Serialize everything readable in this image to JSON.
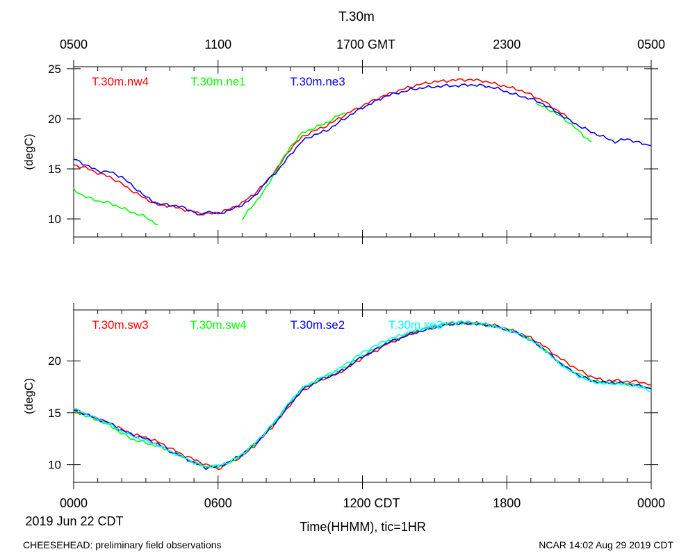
{
  "figure": {
    "title": "T.30m",
    "top_axis_labels": [
      "0500",
      "1100",
      "1700 GMT",
      "2300",
      "0500"
    ],
    "bottom_axis_labels": [
      "0000",
      "0600",
      "1200 CDT",
      "1800",
      "0000"
    ],
    "date_label": "2019 Jun 22 CDT",
    "xlabel": "Time(HHMM), tic=1HR",
    "footer_left": "CHEESEHEAD: preliminary field observations",
    "footer_right": "NCAR 14:02 Aug 29 2019 CDT"
  },
  "chart_data": [
    {
      "type": "line",
      "title": "T.30m",
      "xlabel": "Time(HHMM), tic=1HR",
      "ylabel": "(degC)",
      "x_unit": "hours since 0000 CDT",
      "xlim": [
        0,
        24
      ],
      "ylim": [
        8.2,
        25.2
      ],
      "yticks": [
        10,
        15,
        20,
        25
      ],
      "series": [
        {
          "name": "T.30m.nw4",
          "color": "#ff0000",
          "x": [
            0,
            0.5,
            1,
            1.5,
            2,
            2.5,
            3,
            3.5,
            4,
            4.5,
            5,
            5.5,
            6,
            6.5,
            7,
            7.5,
            8,
            8.5,
            9,
            9.5,
            10,
            10.5,
            11,
            11.5,
            12,
            12.5,
            13,
            13.5,
            14,
            14.5,
            15,
            15.5,
            16,
            16.5,
            17,
            17.5,
            18,
            18.5,
            19,
            19.5,
            20,
            20.5
          ],
          "values": [
            15.4,
            15.1,
            14.6,
            14.2,
            13.5,
            12.7,
            12.0,
            11.4,
            11.3,
            11.0,
            10.7,
            10.5,
            10.6,
            11.0,
            11.6,
            12.5,
            13.7,
            15.2,
            17.0,
            18.2,
            18.8,
            19.3,
            20.0,
            20.7,
            21.3,
            21.9,
            22.4,
            22.8,
            23.2,
            23.5,
            23.7,
            23.8,
            23.9,
            23.9,
            23.8,
            23.5,
            23.2,
            22.9,
            22.4,
            21.8,
            21.0,
            20.2
          ]
        },
        {
          "name": "T.30m.ne1",
          "color": "#00ff00",
          "x": [
            0,
            0.5,
            1,
            1.5,
            2,
            2.5,
            3,
            3.5,
            7,
            7.5,
            8,
            8.5,
            9,
            9.5,
            10,
            10.5,
            11,
            11.3,
            19.2,
            19.7,
            20.2,
            20.7,
            21.2,
            21.5
          ],
          "values": [
            12.9,
            12.2,
            11.8,
            11.6,
            11.1,
            10.6,
            10.2,
            9.4,
            10.0,
            11.5,
            13.1,
            15.2,
            17.2,
            18.6,
            19.1,
            19.6,
            20.3,
            20.5,
            21.5,
            21.0,
            20.3,
            19.4,
            18.3,
            17.7
          ]
        },
        {
          "name": "T.30m.ne3",
          "color": "#0000ff",
          "x": [
            0,
            0.5,
            1,
            1.5,
            2,
            2.5,
            3,
            3.5,
            4,
            4.5,
            5,
            5.3,
            5.5,
            6,
            6.5,
            7,
            7.5,
            8,
            8.5,
            9,
            9.5,
            10,
            10.5,
            11,
            11.5,
            12,
            12.5,
            13,
            13.5,
            14,
            14.5,
            15,
            15.5,
            16,
            16.5,
            17,
            17.5,
            18,
            18.5,
            19,
            19.5,
            20,
            20.5,
            21,
            21.5,
            22,
            22.5,
            23,
            23.5,
            24
          ],
          "values": [
            16.0,
            15.4,
            14.8,
            14.7,
            14.2,
            13.2,
            12.2,
            11.5,
            11.4,
            11.2,
            10.7,
            10.3,
            10.8,
            10.5,
            10.9,
            11.4,
            12.2,
            13.7,
            14.9,
            16.4,
            17.8,
            18.4,
            18.8,
            19.6,
            20.4,
            21.1,
            21.7,
            22.3,
            22.6,
            22.9,
            23.1,
            23.2,
            23.3,
            23.3,
            23.4,
            23.3,
            23.1,
            22.7,
            22.3,
            22.0,
            21.5,
            20.8,
            20.0,
            19.3,
            18.7,
            18.2,
            17.7,
            18.0,
            17.6,
            17.3
          ]
        }
      ]
    },
    {
      "type": "line",
      "title": "",
      "xlabel": "Time(HHMM), tic=1HR",
      "ylabel": "(degC)",
      "x_unit": "hours since 0000 CDT",
      "xlim": [
        0,
        24
      ],
      "ylim": [
        8.3,
        24.9
      ],
      "yticks": [
        10,
        15,
        20
      ],
      "series": [
        {
          "name": "T.30m.sw3",
          "color": "#ff0000",
          "x": [
            0,
            0.5,
            1,
            1.5,
            2,
            2.5,
            3,
            3.5,
            4,
            4.5,
            5,
            5.5,
            6,
            6.5,
            7,
            7.5,
            8,
            8.5,
            9,
            9.5,
            10,
            10.5,
            11,
            11.5,
            12,
            12.5,
            13,
            13.5,
            14,
            14.5,
            15,
            15.5,
            16,
            16.5,
            17,
            17.5,
            18,
            18.5,
            19,
            19.5,
            20,
            20.5,
            21,
            21.5,
            22,
            22.5,
            23,
            23.5,
            24
          ],
          "values": [
            15.2,
            14.8,
            14.4,
            14.0,
            13.4,
            12.9,
            12.6,
            12.2,
            11.6,
            11.0,
            10.5,
            10.0,
            9.6,
            10.2,
            10.8,
            11.8,
            13.0,
            14.3,
            15.8,
            17.1,
            17.8,
            18.4,
            18.8,
            19.5,
            20.3,
            20.9,
            21.6,
            22.1,
            22.6,
            23.0,
            23.3,
            23.6,
            23.7,
            23.7,
            23.6,
            23.4,
            23.1,
            22.7,
            22.2,
            21.5,
            20.6,
            19.8,
            19.1,
            18.5,
            18.1,
            18.1,
            18.0,
            18.0,
            17.7
          ]
        },
        {
          "name": "T.30m.sw4",
          "color": "#00ff00",
          "x": [
            0,
            0.5,
            1,
            1.5,
            2,
            2.5,
            3,
            3.5,
            4,
            4.5,
            5,
            5.5,
            6,
            6.5,
            7,
            7.5,
            8,
            8.5,
            9,
            9.5,
            10,
            10.5,
            11,
            11.5,
            12,
            12.5,
            13,
            13.5,
            14,
            14.5,
            15,
            15.5,
            16,
            16.5,
            17,
            17.5,
            18,
            18.5,
            19,
            19.5,
            20,
            20.5,
            21,
            21.5,
            22,
            22.5,
            23,
            23.5,
            24
          ],
          "values": [
            15.2,
            14.7,
            14.3,
            13.8,
            13.0,
            12.4,
            12.1,
            11.8,
            11.3,
            10.8,
            10.2,
            9.8,
            9.8,
            10.2,
            10.9,
            11.9,
            13.1,
            14.5,
            16.0,
            17.3,
            18.0,
            18.6,
            19.0,
            19.7,
            20.5,
            21.1,
            21.8,
            22.2,
            22.7,
            23.0,
            23.3,
            23.5,
            23.6,
            23.6,
            23.5,
            23.3,
            23.0,
            22.6,
            22.0,
            21.2,
            20.2,
            19.3,
            18.7,
            18.2,
            17.9,
            17.9,
            17.8,
            17.6,
            17.4
          ]
        },
        {
          "name": "T.30m.se2",
          "color": "#0000ff",
          "x": [
            0,
            0.5,
            1,
            1.5,
            2,
            2.5,
            3,
            3.5,
            4,
            4.5,
            5,
            5.5,
            6,
            6.5,
            7,
            7.5,
            8,
            8.5,
            9,
            9.5,
            10,
            10.5,
            11,
            11.5,
            12,
            12.5,
            13,
            13.5,
            14,
            14.5,
            15,
            15.5,
            16,
            16.5,
            17,
            17.5,
            18,
            18.5,
            19,
            19.5,
            20,
            20.5,
            21,
            21.5,
            22,
            22.5,
            23,
            23.5,
            24
          ],
          "values": [
            15.3,
            14.9,
            14.4,
            14.0,
            13.3,
            12.8,
            12.5,
            12.0,
            11.3,
            10.8,
            10.2,
            9.7,
            9.8,
            10.3,
            11.0,
            11.9,
            13.1,
            14.4,
            15.9,
            17.2,
            17.9,
            18.4,
            18.8,
            19.6,
            20.4,
            21.0,
            21.7,
            22.1,
            22.6,
            22.9,
            23.2,
            23.5,
            23.6,
            23.6,
            23.5,
            23.3,
            23.0,
            22.6,
            22.0,
            21.2,
            20.2,
            19.3,
            18.6,
            18.1,
            17.9,
            17.9,
            17.8,
            17.6,
            17.3
          ]
        },
        {
          "name": "T.30m.se3",
          "color": "#00ffff",
          "x": [
            0,
            0.5,
            1,
            1.5,
            2,
            2.5,
            3,
            3.5,
            4,
            4.5,
            5,
            5.5,
            6,
            6.5,
            7,
            7.5,
            8,
            8.5,
            9,
            9.5,
            10,
            10.5,
            11,
            11.5,
            12,
            12.5,
            13,
            13.5,
            14,
            14.5,
            15,
            15.5,
            16,
            16.5,
            17,
            17.5,
            18,
            18.5,
            19,
            19.5,
            20,
            20.5,
            21,
            21.5,
            22,
            22.5,
            23,
            23.5,
            24
          ],
          "values": [
            15.4,
            14.9,
            14.4,
            13.9,
            13.2,
            12.7,
            12.3,
            11.9,
            11.3,
            10.8,
            10.2,
            9.8,
            9.9,
            10.3,
            11.0,
            12.0,
            13.2,
            14.6,
            16.1,
            17.4,
            18.0,
            18.6,
            19.2,
            20.0,
            20.8,
            21.4,
            22.0,
            22.4,
            22.8,
            23.1,
            23.4,
            23.6,
            23.8,
            23.7,
            23.6,
            23.3,
            23.0,
            22.6,
            22.0,
            21.2,
            20.1,
            19.2,
            18.5,
            18.0,
            17.8,
            17.8,
            17.7,
            17.5,
            17.1
          ]
        }
      ]
    }
  ]
}
